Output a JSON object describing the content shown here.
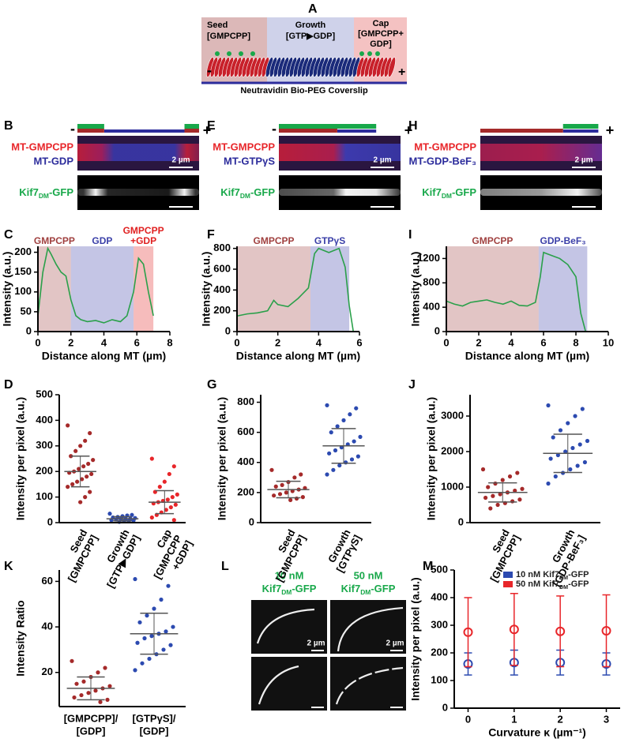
{
  "panels": [
    "A",
    "B",
    "C",
    "D",
    "E",
    "F",
    "G",
    "H",
    "I",
    "J",
    "K",
    "L",
    "M"
  ],
  "diagram": {
    "seed": [
      "Seed",
      "[GMPCPP]"
    ],
    "growth": [
      "Growth",
      "[GTP▶GDP]"
    ],
    "cap": [
      "Cap",
      "[GMPCPP+",
      "GDP]"
    ],
    "minus": "-",
    "plus": "+",
    "coverslip": "Neutravidin Bio-PEG Coverslip"
  },
  "micrographs": [
    {
      "top": "MT-GMPCPP",
      "bottom": "MT-GDP",
      "kif": [
        "Kif7",
        "DM",
        "-GFP"
      ],
      "scale": "2 µm",
      "minus": "-",
      "plus": "+"
    },
    {
      "top": "MT-GMPCPP",
      "bottom": "MT-GTPγS",
      "kif": [
        "Kif7",
        "DM",
        "-GFP"
      ],
      "scale": "2 µm",
      "minus": "-",
      "plus": "+"
    },
    {
      "top": "MT-GMPCPP",
      "bottom": "MT-GDP-BeF₃",
      "kif": [
        "Kif7",
        "DM",
        "-GFP"
      ],
      "scale": "2 µm",
      "plus": "+"
    }
  ],
  "curvature_images": {
    "columns": [
      {
        "conc": "10 nM",
        "kif": [
          "Kif7",
          "DM",
          "-GFP"
        ]
      },
      {
        "conc": "50 nM",
        "kif": [
          "Kif7",
          "DM",
          "-GFP"
        ]
      }
    ],
    "scale": [
      "2 µm",
      "2 µm"
    ]
  },
  "chart_data": [
    {
      "type": "line",
      "xlabel": "Distance along MT (µm)",
      "ylabel": "Intensity (a.u.)",
      "color": "#2aa04a",
      "xlim": [
        0,
        8
      ],
      "xticks": [
        0,
        2,
        4,
        6,
        8
      ],
      "ylim": [
        0,
        215
      ],
      "yticks": [
        0,
        50,
        100,
        150,
        200
      ],
      "regions": [
        {
          "label": [
            "GMPCPP"
          ],
          "range": [
            0,
            2
          ],
          "color": "#a0403f"
        },
        {
          "label": [
            "GDP"
          ],
          "range": [
            2,
            5.8
          ],
          "color": "#3a3fa8"
        },
        {
          "label": [
            "GMPCPP",
            "+GDP"
          ],
          "range": [
            5.8,
            7
          ],
          "color": "#e02020"
        }
      ],
      "x": [
        0,
        0.3,
        0.6,
        0.8,
        1.1,
        1.4,
        1.7,
        2.0,
        2.3,
        2.6,
        3.0,
        3.5,
        4.0,
        4.5,
        5.0,
        5.4,
        5.8,
        6.1,
        6.4,
        6.7,
        7.0
      ],
      "values": [
        40,
        150,
        210,
        195,
        170,
        150,
        140,
        80,
        40,
        30,
        25,
        28,
        22,
        30,
        25,
        40,
        100,
        185,
        170,
        100,
        40
      ]
    },
    {
      "type": "line",
      "xlabel": "Distance along MT (µm)",
      "ylabel": "Intensity (a.u.)",
      "color": "#2aa04a",
      "xlim": [
        0,
        6
      ],
      "xticks": [
        0,
        2,
        4,
        6
      ],
      "ylim": [
        0,
        820
      ],
      "yticks": [
        0,
        200,
        400,
        600,
        800
      ],
      "regions": [
        {
          "label": [
            "GMPCPP"
          ],
          "range": [
            0,
            3.6
          ],
          "color": "#a0403f"
        },
        {
          "label": [
            "GTPγS"
          ],
          "range": [
            3.6,
            5.5
          ],
          "color": "#3a3fa8"
        }
      ],
      "x": [
        0,
        0.5,
        1,
        1.5,
        1.8,
        2,
        2.5,
        3,
        3.5,
        3.8,
        4.0,
        4.5,
        5.0,
        5.3,
        5.5,
        5.7
      ],
      "values": [
        150,
        170,
        180,
        200,
        300,
        260,
        240,
        320,
        420,
        750,
        800,
        760,
        800,
        620,
        250,
        0
      ]
    },
    {
      "type": "line",
      "xlabel": "Distance along MT (µm)",
      "ylabel": "Intensity (a.u.)",
      "color": "#2aa04a",
      "xlim": [
        0,
        10
      ],
      "xticks": [
        0,
        2,
        4,
        6,
        8,
        10
      ],
      "ylim": [
        0,
        1400
      ],
      "yticks": [
        0,
        400,
        800,
        1200
      ],
      "regions": [
        {
          "label": [
            "GMPCPP"
          ],
          "range": [
            0,
            5.7
          ],
          "color": "#a0403f"
        },
        {
          "label": [
            "GDP-BeF₃"
          ],
          "range": [
            5.7,
            8.7
          ],
          "color": "#3a3fa8"
        }
      ],
      "x": [
        0,
        0.5,
        1,
        1.5,
        2,
        2.5,
        3,
        3.5,
        4,
        4.5,
        5,
        5.5,
        5.8,
        6,
        6.5,
        7,
        7.5,
        8,
        8.3,
        8.6
      ],
      "values": [
        500,
        450,
        420,
        480,
        500,
        520,
        480,
        450,
        500,
        430,
        420,
        480,
        900,
        1300,
        1250,
        1200,
        1100,
        900,
        300,
        0
      ]
    },
    {
      "type": "strip",
      "ylabel": "Intensity per pixel (a.u.)",
      "rotate_labels": true,
      "ylim": [
        0,
        500
      ],
      "yticks": [
        0,
        100,
        200,
        300,
        400,
        500
      ],
      "categories": [
        [
          "Seed",
          "[GMPCPP]"
        ],
        [
          "Growth",
          "[GTP▶GDP]"
        ],
        [
          "Cap",
          "[GMPCPP",
          "+GDP]"
        ]
      ],
      "colors": [
        "#a52a2a",
        "#2c4ab0",
        "#e8262a"
      ],
      "points": [
        [
          380,
          350,
          320,
          300,
          280,
          260,
          245,
          230,
          220,
          210,
          200,
          195,
          190,
          180,
          170,
          160,
          150,
          140,
          120,
          100,
          80
        ],
        [
          35,
          30,
          28,
          25,
          22,
          20,
          18,
          16,
          15,
          14,
          12,
          10,
          8,
          6,
          5,
          3
        ],
        [
          250,
          220,
          190,
          160,
          140,
          120,
          110,
          100,
          90,
          85,
          80,
          75,
          70,
          60,
          50,
          40,
          30,
          20,
          10
        ]
      ],
      "mean": [
        200,
        15,
        80
      ],
      "sd": [
        60,
        8,
        45
      ]
    },
    {
      "type": "strip",
      "ylabel": "Intensity per pixel (a.u.)",
      "rotate_labels": true,
      "ylim": [
        0,
        850
      ],
      "yticks": [
        0,
        200,
        400,
        600,
        800
      ],
      "categories": [
        [
          "Seed",
          "[GMPCPP]"
        ],
        [
          "Growth",
          "[GTPγS]"
        ]
      ],
      "colors": [
        "#a52a2a",
        "#2c4ab0"
      ],
      "points": [
        [
          350,
          320,
          300,
          270,
          250,
          240,
          230,
          220,
          210,
          200,
          190,
          180,
          170,
          160,
          150
        ],
        [
          780,
          760,
          720,
          680,
          640,
          600,
          570,
          540,
          520,
          500,
          480,
          460,
          440,
          420,
          400,
          380,
          350,
          320
        ]
      ],
      "mean": [
        220,
        510
      ],
      "sd": [
        55,
        115
      ]
    },
    {
      "type": "strip",
      "ylabel": "Intensity per pixel (a.u.)",
      "rotate_labels": true,
      "ylim": [
        0,
        3600
      ],
      "yticks": [
        0,
        1000,
        2000,
        3000
      ],
      "categories": [
        [
          "Seed",
          "[GMPCPP]"
        ],
        [
          "Growth",
          "[GDP-BeF₃]"
        ]
      ],
      "colors": [
        "#a52a2a",
        "#2c4ab0"
      ],
      "points": [
        [
          1500,
          1400,
          1300,
          1200,
          1100,
          1000,
          950,
          900,
          850,
          800,
          750,
          700,
          650,
          600,
          550,
          500,
          400
        ],
        [
          3300,
          3200,
          3000,
          2800,
          2600,
          2400,
          2300,
          2200,
          2100,
          2000,
          1900,
          1800,
          1700,
          1600,
          1500,
          1400,
          1300,
          1100
        ]
      ],
      "mean": [
        850,
        1950
      ],
      "sd": [
        270,
        540
      ]
    },
    {
      "type": "strip",
      "ylabel": "Intensity Ratio",
      "rotate_labels": false,
      "ylim": [
        5,
        65
      ],
      "yticks": [
        20,
        40,
        60
      ],
      "categories": [
        [
          "[GMPCPP]/",
          "[GDP]"
        ],
        [
          "[GTPγS]/",
          "[GDP]"
        ]
      ],
      "colors": [
        "#a52a2a",
        "#2c4ab0"
      ],
      "points": [
        [
          25,
          22,
          20,
          18,
          16,
          15,
          14,
          13,
          12,
          11,
          10,
          9,
          8,
          7
        ],
        [
          61,
          58,
          52,
          48,
          45,
          42,
          40,
          38,
          37,
          36,
          35,
          33,
          32,
          30,
          28,
          26,
          24,
          21
        ]
      ],
      "mean": [
        13,
        37
      ],
      "sd": [
        5,
        9
      ]
    },
    {
      "type": "errorbar",
      "xlabel": "Curvature κ (µm⁻¹)",
      "ylabel": "Intensity per pixel (a.u.)",
      "xlim": [
        -0.3,
        3.3
      ],
      "xticks": [
        0,
        1,
        2,
        3
      ],
      "ylim": [
        0,
        500
      ],
      "yticks": [
        0,
        100,
        200,
        300,
        400,
        500
      ],
      "series": [
        {
          "name": [
            "10 nM Kif7",
            "DM",
            "-GFP"
          ],
          "color": "#2c4ab0",
          "x": [
            0,
            1,
            2,
            3
          ],
          "values": [
            160,
            165,
            165,
            160
          ],
          "errors": [
            40,
            45,
            45,
            40
          ]
        },
        {
          "name": [
            "50 nM Kif7",
            "DM",
            "-GFP"
          ],
          "color": "#e8262a",
          "x": [
            0,
            1,
            2,
            3
          ],
          "values": [
            275,
            285,
            278,
            280
          ],
          "errors": [
            125,
            130,
            128,
            130
          ]
        }
      ]
    }
  ]
}
